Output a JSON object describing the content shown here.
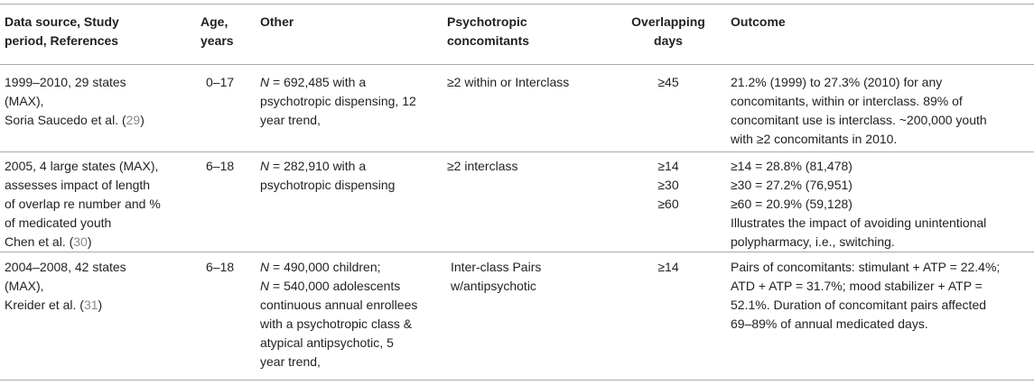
{
  "headers": {
    "source": [
      "Data source, Study",
      "period, References"
    ],
    "age": [
      "Age,",
      "years"
    ],
    "other": [
      "Other"
    ],
    "psycho": [
      "Psychotropic",
      "concomitants"
    ],
    "overlap": [
      "Overlapping",
      "days"
    ],
    "outcome": [
      "Outcome"
    ]
  },
  "rows": [
    {
      "source": [
        "1999–2010, 29 states",
        "(MAX),"
      ],
      "source_ref_text": "Soria Saucedo et al. (",
      "source_ref_num": "29",
      "source_ref_close": ")",
      "age": "0–17",
      "other_n": "N",
      "other": [
        " = 692,485 with a",
        "psychotropic dispensing, 12",
        "year trend,"
      ],
      "psycho": [
        "≥2 within or Interclass"
      ],
      "overlap": [
        "≥45"
      ],
      "outcome": [
        "21.2% (1999) to 27.3% (2010) for any",
        "concomitants, within or interclass. 89% of",
        "concomitant use is interclass. ~200,000 youth",
        "with ≥2 concomitants in 2010."
      ]
    },
    {
      "source": [
        "2005, 4 large states (MAX),",
        "assesses impact of length",
        "of overlap re number and %",
        "of medicated youth"
      ],
      "source_ref_text": "Chen et al. (",
      "source_ref_num": "30",
      "source_ref_close": ")",
      "age": "6–18",
      "other_n": "N",
      "other": [
        " = 282,910 with a",
        "psychotropic dispensing"
      ],
      "psycho": [
        "≥2 interclass"
      ],
      "overlap": [
        "≥14",
        "≥30",
        "≥60"
      ],
      "outcome": [
        "≥14 = 28.8% (81,478)",
        "≥30 = 27.2% (76,951)",
        "≥60 = 20.9% (59,128)",
        "Illustrates the impact of avoiding unintentional",
        "polypharmacy, i.e., switching."
      ]
    },
    {
      "source": [
        "2004–2008, 42 states",
        "(MAX),"
      ],
      "source_ref_text": "Kreider et al. (",
      "source_ref_num": "31",
      "source_ref_close": ")",
      "age": "6–18",
      "other_n": "N",
      "other": [
        " = 490,000 children;",
        " = 540,000 adolescents",
        "continuous annual enrollees",
        "with a psychotropic class &",
        "atypical antipsychotic, 5",
        "year trend,"
      ],
      "psycho": [
        "Inter-class Pairs",
        "w/antipsychotic"
      ],
      "overlap": [
        "≥14"
      ],
      "outcome": [
        "Pairs of concomitants: stimulant + ATP = 22.4%;",
        "ATD + ATP = 31.7%; mood stabilizer + ATP =",
        "52.1%. Duration of concomitant pairs affected",
        "69–89% of annual medicated days."
      ]
    }
  ]
}
